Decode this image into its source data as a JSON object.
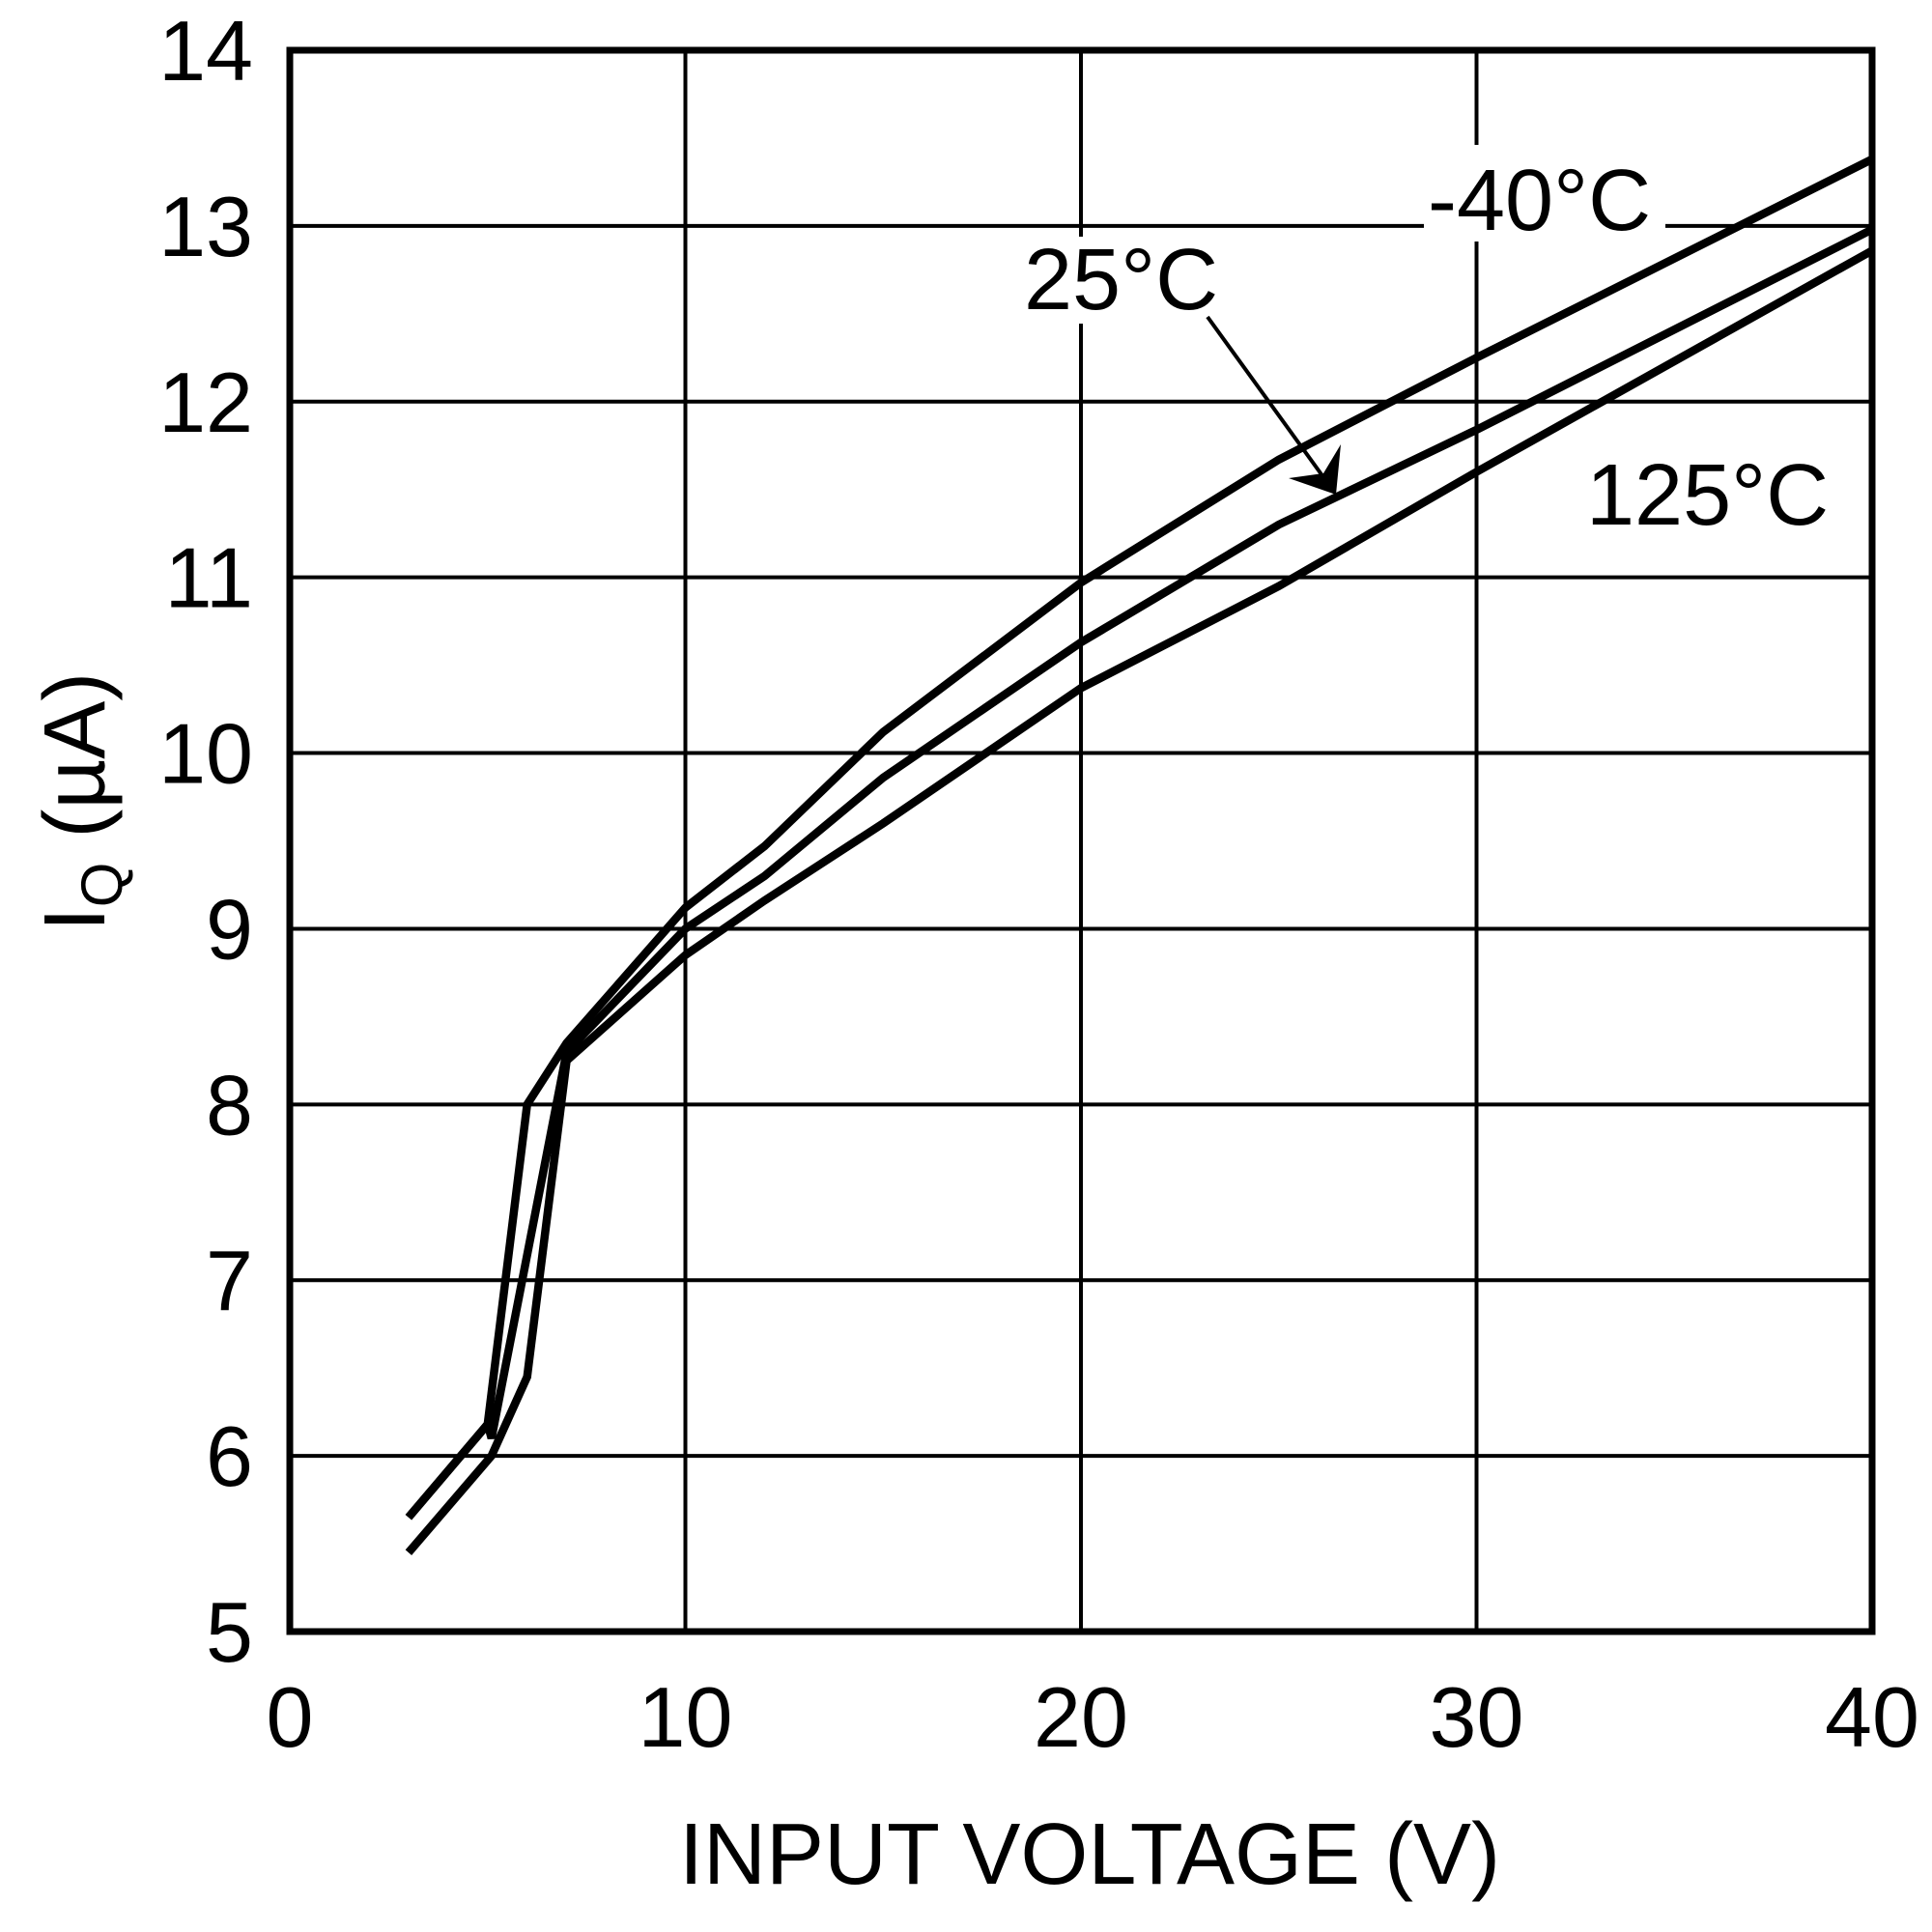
{
  "chart_data": {
    "type": "line",
    "title": "",
    "xlabel": "INPUT VOLTAGE (V)",
    "ylabel": "I",
    "ylabel_subscript": "Q",
    "ylabel_unit": " (µA)",
    "xlim": [
      0,
      40
    ],
    "ylim": [
      5,
      14
    ],
    "x_ticks": [
      0,
      10,
      20,
      30,
      40
    ],
    "y_ticks": [
      5,
      6,
      7,
      8,
      9,
      10,
      11,
      12,
      13,
      14
    ],
    "grid": true,
    "legend": "none (inline annotations)",
    "series": [
      {
        "name": "-40°C",
        "x": [
          3,
          5,
          6,
          7,
          10,
          12,
          15,
          20,
          25,
          30,
          40
        ],
        "y": [
          5.65,
          6.18,
          8.0,
          8.35,
          9.12,
          9.47,
          10.12,
          10.97,
          11.67,
          12.25,
          13.38
        ]
      },
      {
        "name": "25°C",
        "x": [
          3,
          5,
          5.1,
          7,
          10,
          12,
          15,
          20,
          25,
          30,
          40
        ],
        "y": [
          5.65,
          6.18,
          6.1,
          8.3,
          9.0,
          9.3,
          9.86,
          10.63,
          11.3,
          11.84,
          12.98
        ]
      },
      {
        "name": "125°C",
        "x": [
          3,
          5.1,
          6,
          7,
          10,
          12,
          15,
          20,
          25,
          30,
          40
        ],
        "y": [
          5.45,
          6.0,
          6.45,
          8.25,
          8.85,
          9.16,
          9.6,
          10.37,
          10.95,
          11.6,
          12.86
        ]
      }
    ],
    "annotations": [
      {
        "text": "-40°C",
        "series": "-40°C"
      },
      {
        "text": "25°C",
        "series": "25°C",
        "arrow": true
      },
      {
        "text": "125°C",
        "series": "125°C"
      }
    ]
  },
  "labels": {
    "x_ticks": [
      "0",
      "10",
      "20",
      "30",
      "40"
    ],
    "y_ticks": [
      "5",
      "6",
      "7",
      "8",
      "9",
      "10",
      "11",
      "12",
      "13",
      "14"
    ],
    "x_title": "INPUT VOLTAGE (V)",
    "y_title_main": "I",
    "y_title_sub": "Q",
    "y_title_unit": " (µA)",
    "annot_minus40": "-40°C",
    "annot_25": "25°C",
    "annot_125": "125°C"
  },
  "colors": {
    "line": "#000000",
    "background": "#ffffff"
  }
}
